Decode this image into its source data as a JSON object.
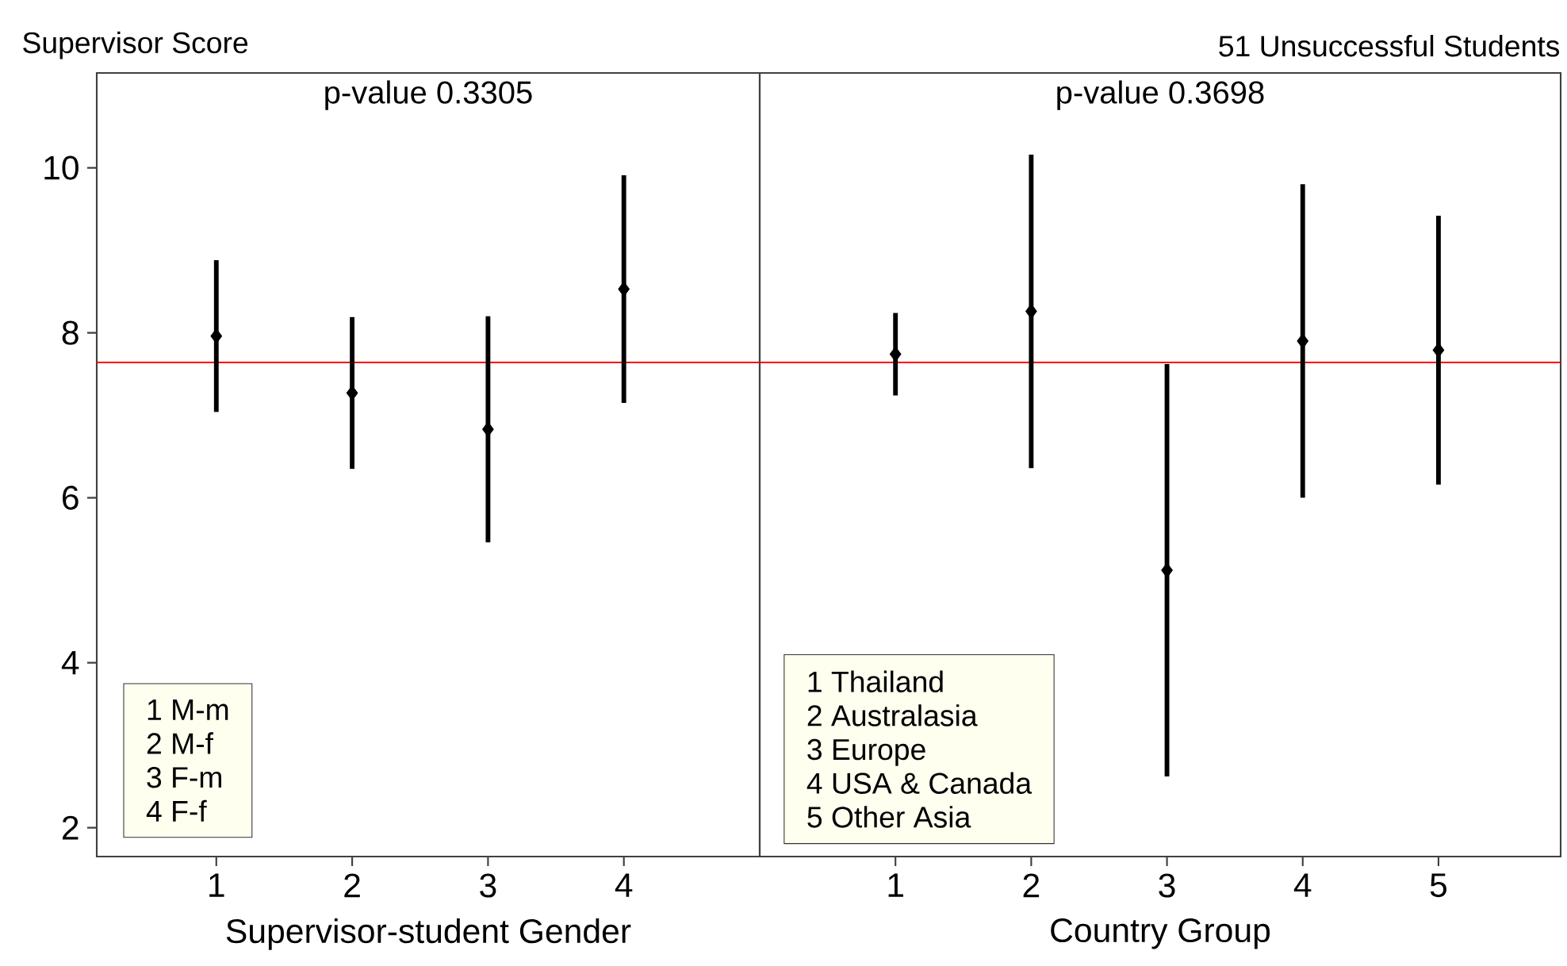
{
  "chart_data": [
    {
      "type": "scatter",
      "title": "p-value 0.3305",
      "ylabel": "Supervisor Score",
      "xlabel": "Supervisor-student Gender",
      "categories": [
        "1",
        "2",
        "3",
        "4"
      ],
      "series": [
        {
          "color": "#000000",
          "values": [
            7.96,
            7.27,
            6.83,
            8.53
          ],
          "errors": [
            0.92,
            0.92,
            1.37,
            1.38
          ]
        }
      ],
      "ylim": [
        1.65,
        11.15
      ],
      "yticks": [
        2,
        4,
        6,
        8,
        10
      ],
      "marker": "diamond",
      "ref_lines": [
        {
          "axis": "y",
          "value": 7.64,
          "color": "#ff0000"
        }
      ],
      "annotations": [
        "1 M-m",
        "2 M-f",
        "3 F-m",
        "4 F-f"
      ]
    },
    {
      "type": "scatter",
      "title": "p-value 0.3698",
      "subtitle": "51 Unsuccessful Students",
      "xlabel": "Country Group",
      "categories": [
        "1",
        "2",
        "3",
        "4",
        "5"
      ],
      "series": [
        {
          "color": "#000000",
          "values": [
            7.74,
            8.26,
            5.12,
            7.9,
            7.79
          ],
          "errors": [
            0.5,
            1.9,
            2.5,
            1.9,
            1.63
          ]
        }
      ],
      "ylim": [
        1.65,
        11.15
      ],
      "tick_labels": "x",
      "marker": "diamond",
      "ref_lines": [
        {
          "axis": "y",
          "value": 7.64,
          "color": "#ff0000"
        }
      ],
      "annotations": [
        "1 Thailand",
        "2 Australasia",
        "3 Europe",
        "4 USA & Canada",
        "5 Other Asia"
      ]
    }
  ]
}
